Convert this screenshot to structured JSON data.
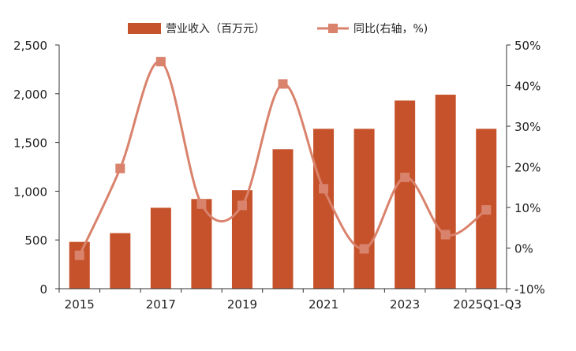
{
  "chart_data": {
    "type": "bar+line",
    "categories": [
      "2015",
      "2016",
      "2017",
      "2018",
      "2019",
      "2020",
      "2021",
      "2022",
      "2023",
      "2024",
      "2025Q1-Q3"
    ],
    "x_tick_labels": [
      "2015",
      "",
      "2017",
      "",
      "2019",
      "",
      "2021",
      "",
      "2023",
      "",
      "2025Q1-Q3"
    ],
    "series": [
      {
        "name": "营业收入（百万元）",
        "type": "bar",
        "axis": "left",
        "values": [
          480,
          570,
          830,
          920,
          1010,
          1430,
          1640,
          1640,
          1930,
          1990,
          1640
        ]
      },
      {
        "name": "同比(右轴，%)",
        "type": "line",
        "axis": "right",
        "values": [
          -1.8,
          19.6,
          45.9,
          10.8,
          10.5,
          40.4,
          14.6,
          -0.2,
          17.4,
          3.3,
          9.4
        ]
      }
    ],
    "left_axis": {
      "ylim": [
        0,
        2500
      ],
      "ticks": [
        0,
        500,
        1000,
        1500,
        2000,
        2500
      ],
      "tick_labels": [
        "0",
        "500",
        "1,000",
        "1,500",
        "2,000",
        "2,500"
      ]
    },
    "right_axis": {
      "ylim": [
        -10,
        50
      ],
      "ticks": [
        -10,
        0,
        10,
        20,
        30,
        40,
        50
      ],
      "tick_labels": [
        "-10%",
        "0%",
        "10%",
        "20%",
        "30%",
        "40%",
        "50%"
      ]
    },
    "legend": {
      "position": "top",
      "entries": [
        "营业收入（百万元）",
        "同比(右轴，%)"
      ]
    },
    "grid": false,
    "colors": {
      "bar": "#C5522A",
      "line": "#D9826C",
      "marker": "#D9826C",
      "axis": "#333333",
      "text": "#222222"
    }
  }
}
